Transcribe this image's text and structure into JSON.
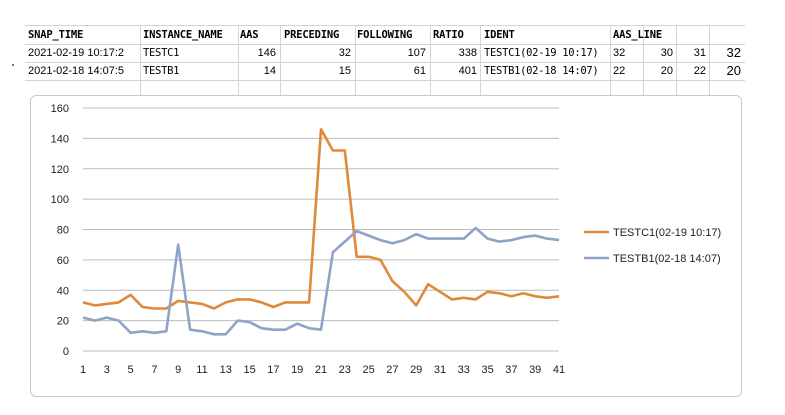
{
  "table": {
    "headers": [
      "SNAP_TIME",
      "INSTANCE_NAME",
      "AAS",
      "PRECEDING",
      "FOLLOWING",
      "RATIO",
      "IDENT",
      "AAS_LINE"
    ],
    "rows": [
      {
        "snap_time": "2021-02-19 10:17:2",
        "instance_name": "TESTC1",
        "aas": "146",
        "preceding": "32",
        "following": "107",
        "ratio": "338",
        "ident": "TESTC1(02-19 10:17)",
        "aas_line": "32",
        "extra1": "30",
        "extra2": "31",
        "extra3": "32"
      },
      {
        "snap_time": "2021-02-18 14:07:5",
        "instance_name": "TESTB1",
        "aas": "14",
        "preceding": "15",
        "following": "61",
        "ratio": "401",
        "ident": "TESTB1(02-18 14:07)",
        "aas_line": "22",
        "extra1": "20",
        "extra2": "22",
        "extra3": "20"
      }
    ]
  },
  "chart_data": {
    "type": "line",
    "x": [
      1,
      2,
      3,
      4,
      5,
      6,
      7,
      8,
      9,
      10,
      11,
      12,
      13,
      14,
      15,
      16,
      17,
      18,
      19,
      20,
      21,
      22,
      23,
      24,
      25,
      26,
      27,
      28,
      29,
      30,
      31,
      32,
      33,
      34,
      35,
      36,
      37,
      38,
      39,
      40,
      41
    ],
    "x_tick_labels": [
      "1",
      "3",
      "5",
      "7",
      "9",
      "11",
      "13",
      "15",
      "17",
      "19",
      "21",
      "23",
      "25",
      "27",
      "29",
      "31",
      "33",
      "35",
      "37",
      "39",
      "41"
    ],
    "ylim": [
      0,
      160
    ],
    "y_ticks": [
      "0",
      "20",
      "40",
      "60",
      "80",
      "100",
      "120",
      "140",
      "160"
    ],
    "grid": "horizontal",
    "legend_position": "right",
    "series": [
      {
        "name": "TESTC1(02-19 10:17)",
        "color": "#e0893a",
        "values": [
          32,
          30,
          31,
          32,
          37,
          29,
          28,
          28,
          33,
          32,
          31,
          28,
          32,
          34,
          34,
          32,
          29,
          32,
          32,
          32,
          146,
          132,
          132,
          62,
          62,
          60,
          46,
          39,
          30,
          44,
          39,
          34,
          35,
          34,
          39,
          38,
          36,
          38,
          36,
          35,
          36
        ]
      },
      {
        "name": "TESTB1(02-18 14:07)",
        "color": "#8fa3c8",
        "values": [
          22,
          20,
          22,
          20,
          12,
          13,
          12,
          13,
          70,
          14,
          13,
          11,
          11,
          20,
          19,
          15,
          14,
          14,
          18,
          15,
          14,
          65,
          72,
          79,
          76,
          73,
          71,
          73,
          77,
          74,
          74,
          74,
          74,
          81,
          74,
          72,
          73,
          75,
          76,
          74,
          73
        ]
      }
    ]
  }
}
